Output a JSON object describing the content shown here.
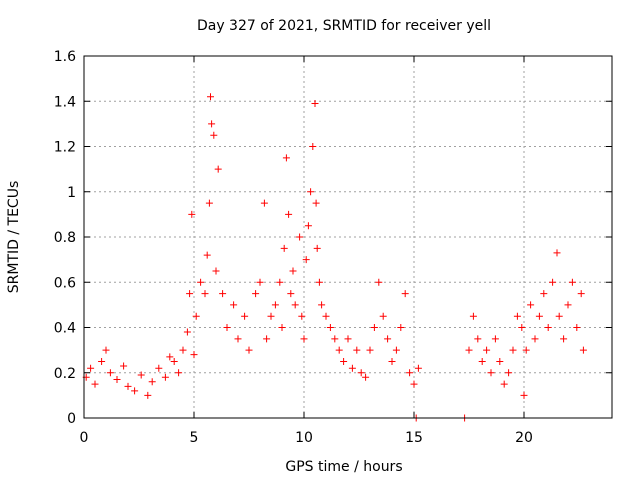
{
  "chart_data": {
    "type": "scatter",
    "title": "Day 327 of 2021, SRMTID for receiver yell",
    "xlabel": "GPS time / hours",
    "ylabel": "SRMTID / TECUs",
    "xlim": [
      0,
      24
    ],
    "ylim": [
      0,
      1.6
    ],
    "xticks": [
      0,
      5,
      10,
      15,
      20
    ],
    "xtick_labels": [
      "0",
      "5",
      "10",
      "15",
      "20"
    ],
    "yticks": [
      0,
      0.2,
      0.4,
      0.6,
      0.8,
      1.0,
      1.2,
      1.4,
      1.6
    ],
    "ytick_labels": [
      "0",
      "0.2",
      "0.4",
      "0.6",
      "0.8",
      "1",
      "1.2",
      "1.4",
      "1.6"
    ],
    "grid": true,
    "marker": "+",
    "color": "#ff0000",
    "series": [
      {
        "name": "SRMTID",
        "x": [
          0.1,
          0.3,
          0.5,
          0.8,
          1.0,
          1.2,
          1.5,
          1.8,
          2.0,
          2.3,
          2.6,
          2.9,
          3.1,
          3.4,
          3.7,
          3.9,
          4.1,
          4.3,
          4.5,
          4.7,
          4.8,
          4.9,
          5.0,
          5.1,
          5.3,
          5.5,
          5.6,
          5.7,
          5.75,
          5.8,
          5.9,
          6.0,
          6.1,
          6.3,
          6.5,
          6.8,
          7.0,
          7.3,
          7.5,
          7.8,
          8.0,
          8.2,
          8.3,
          8.5,
          8.7,
          8.9,
          9.0,
          9.1,
          9.2,
          9.3,
          9.4,
          9.5,
          9.6,
          9.8,
          9.9,
          10.0,
          10.1,
          10.2,
          10.3,
          10.4,
          10.5,
          10.55,
          10.6,
          10.7,
          10.8,
          11.0,
          11.2,
          11.4,
          11.6,
          11.8,
          12.0,
          12.2,
          12.4,
          12.6,
          12.8,
          13.0,
          13.2,
          13.4,
          13.6,
          13.8,
          14.0,
          14.2,
          14.4,
          14.6,
          14.8,
          15.0,
          15.2,
          15.1,
          17.3,
          17.5,
          17.7,
          17.9,
          18.1,
          18.3,
          18.5,
          18.7,
          18.9,
          19.1,
          19.3,
          19.5,
          19.7,
          19.9,
          20.0,
          20.1,
          20.3,
          20.5,
          20.7,
          20.9,
          21.1,
          21.3,
          21.5,
          21.6,
          21.8,
          22.0,
          22.2,
          22.4,
          22.6,
          22.7
        ],
        "y": [
          0.18,
          0.22,
          0.15,
          0.25,
          0.3,
          0.2,
          0.17,
          0.23,
          0.14,
          0.12,
          0.19,
          0.1,
          0.16,
          0.22,
          0.18,
          0.27,
          0.25,
          0.2,
          0.3,
          0.38,
          0.55,
          0.9,
          0.28,
          0.45,
          0.6,
          0.55,
          0.72,
          0.95,
          1.42,
          1.3,
          1.25,
          0.65,
          1.1,
          0.55,
          0.4,
          0.5,
          0.35,
          0.45,
          0.3,
          0.55,
          0.6,
          0.95,
          0.35,
          0.45,
          0.5,
          0.6,
          0.4,
          0.75,
          1.15,
          0.9,
          0.55,
          0.65,
          0.5,
          0.8,
          0.45,
          0.35,
          0.7,
          0.85,
          1.0,
          1.2,
          1.39,
          0.95,
          0.75,
          0.6,
          0.5,
          0.45,
          0.4,
          0.35,
          0.3,
          0.25,
          0.35,
          0.22,
          0.3,
          0.2,
          0.18,
          0.3,
          0.4,
          0.6,
          0.45,
          0.35,
          0.25,
          0.3,
          0.4,
          0.55,
          0.2,
          0.15,
          0.22,
          0.0,
          0.0,
          0.3,
          0.45,
          0.35,
          0.25,
          0.3,
          0.2,
          0.35,
          0.25,
          0.15,
          0.2,
          0.3,
          0.45,
          0.4,
          0.1,
          0.3,
          0.5,
          0.35,
          0.45,
          0.55,
          0.4,
          0.6,
          0.73,
          0.45,
          0.35,
          0.5,
          0.6,
          0.4,
          0.55,
          0.3
        ]
      }
    ]
  }
}
